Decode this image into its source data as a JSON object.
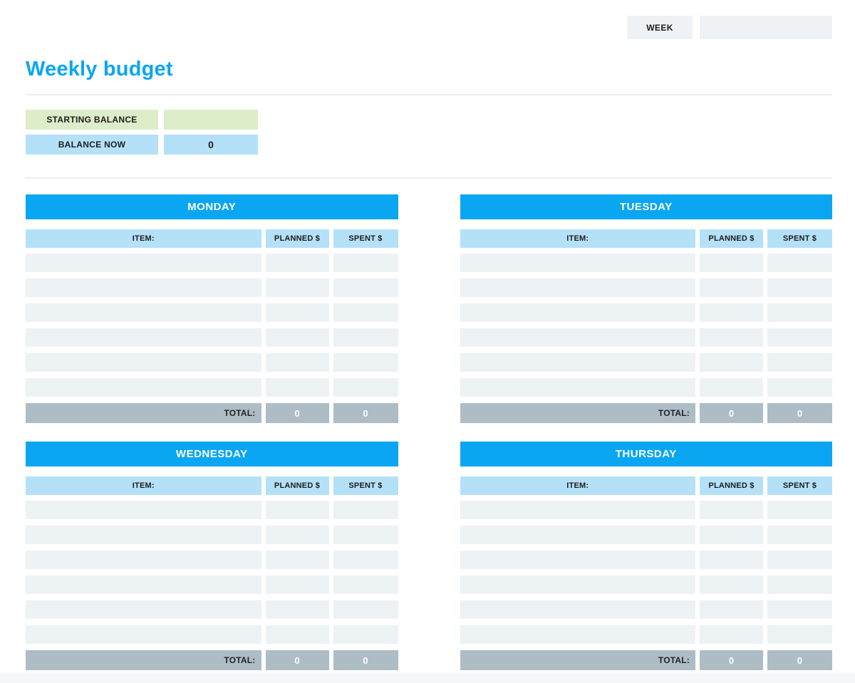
{
  "header": {
    "week_label": "WEEK",
    "week_value": ""
  },
  "title": "Weekly budget",
  "balance": {
    "starting_label": "STARTING BALANCE",
    "starting_value": "",
    "now_label": "BALANCE NOW",
    "now_value": "0"
  },
  "table_columns": {
    "item": "ITEM:",
    "planned": "PLANNED $",
    "spent": "SPENT $"
  },
  "total_label": "TOTAL:",
  "days": [
    {
      "name": "MONDAY",
      "rows": [
        [
          "",
          "",
          ""
        ],
        [
          "",
          "",
          ""
        ],
        [
          "",
          "",
          ""
        ],
        [
          "",
          "",
          ""
        ],
        [
          "",
          "",
          ""
        ],
        [
          "",
          "",
          ""
        ]
      ],
      "total_planned": "0",
      "total_spent": "0"
    },
    {
      "name": "TUESDAY",
      "rows": [
        [
          "",
          "",
          ""
        ],
        [
          "",
          "",
          ""
        ],
        [
          "",
          "",
          ""
        ],
        [
          "",
          "",
          ""
        ],
        [
          "",
          "",
          ""
        ],
        [
          "",
          "",
          ""
        ]
      ],
      "total_planned": "0",
      "total_spent": "0"
    },
    {
      "name": "WEDNESDAY",
      "rows": [
        [
          "",
          "",
          ""
        ],
        [
          "",
          "",
          ""
        ],
        [
          "",
          "",
          ""
        ],
        [
          "",
          "",
          ""
        ],
        [
          "",
          "",
          ""
        ],
        [
          "",
          "",
          ""
        ]
      ],
      "total_planned": "0",
      "total_spent": "0"
    },
    {
      "name": "THURSDAY",
      "rows": [
        [
          "",
          "",
          ""
        ],
        [
          "",
          "",
          ""
        ],
        [
          "",
          "",
          ""
        ],
        [
          "",
          "",
          ""
        ],
        [
          "",
          "",
          ""
        ],
        [
          "",
          "",
          ""
        ]
      ],
      "total_planned": "0",
      "total_spent": "0"
    }
  ],
  "colors": {
    "blue": "#0aa6f2",
    "light_blue": "#b5e1f8",
    "green": "#ddedc9",
    "row_gray": "#edf2f4",
    "total_gray": "#aebcc5",
    "box_gray": "#eef2f5",
    "divider": "#e8eef0"
  }
}
